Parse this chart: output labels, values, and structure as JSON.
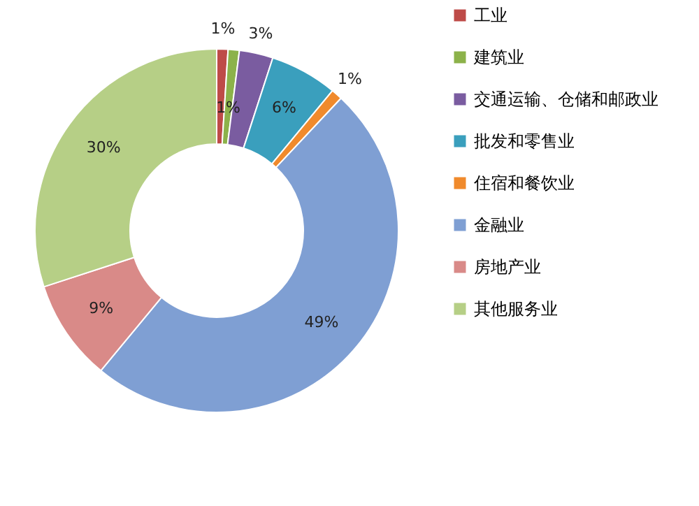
{
  "chart_data": {
    "type": "donut",
    "categories": [
      "工业",
      "建筑业",
      "交通运输、仓储和邮政业",
      "批发和零售业",
      "住宿和餐饮业",
      "金融业",
      "房地产业",
      "其他服务业"
    ],
    "values": [
      1,
      1,
      3,
      6,
      1,
      49,
      9,
      30
    ],
    "value_labels": [
      "1%",
      "1%",
      "3%",
      "6%",
      "1%",
      "49%",
      "9%",
      "30%"
    ],
    "colors": [
      "#be4b48",
      "#8cb24a",
      "#7a5ca0",
      "#3a9fbd",
      "#f08a2c",
      "#7f9fd3",
      "#d98a88",
      "#b6cf86"
    ],
    "legend": "right"
  }
}
